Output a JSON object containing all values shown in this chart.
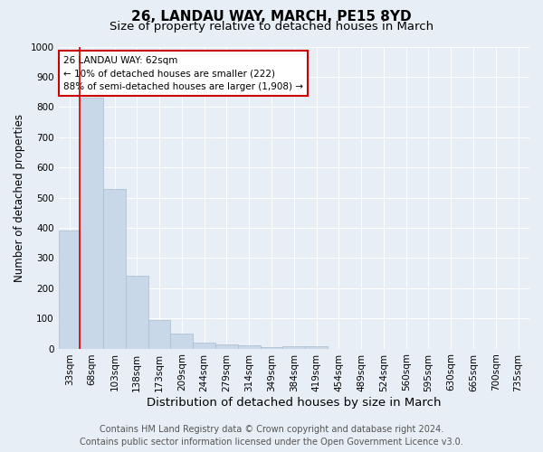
{
  "title1": "26, LANDAU WAY, MARCH, PE15 8YD",
  "title2": "Size of property relative to detached houses in March",
  "xlabel": "Distribution of detached houses by size in March",
  "ylabel": "Number of detached properties",
  "categories": [
    "33sqm",
    "68sqm",
    "103sqm",
    "138sqm",
    "173sqm",
    "209sqm",
    "244sqm",
    "279sqm",
    "314sqm",
    "349sqm",
    "384sqm",
    "419sqm",
    "454sqm",
    "489sqm",
    "524sqm",
    "560sqm",
    "595sqm",
    "630sqm",
    "665sqm",
    "700sqm",
    "735sqm"
  ],
  "values": [
    390,
    830,
    530,
    240,
    95,
    50,
    20,
    13,
    10,
    5,
    8,
    8,
    0,
    0,
    0,
    0,
    0,
    0,
    0,
    0,
    0
  ],
  "bar_color": "#c8d8e8",
  "bar_edge_color": "#a8bece",
  "ylim": [
    0,
    1000
  ],
  "yticks": [
    0,
    100,
    200,
    300,
    400,
    500,
    600,
    700,
    800,
    900,
    1000
  ],
  "annotation_title": "26 LANDAU WAY: 62sqm",
  "annotation_line1": "← 10% of detached houses are smaller (222)",
  "annotation_line2": "88% of semi-detached houses are larger (1,908) →",
  "annotation_box_color": "#ffffff",
  "annotation_border_color": "#cc0000",
  "footer_line1": "Contains HM Land Registry data © Crown copyright and database right 2024.",
  "footer_line2": "Contains public sector information licensed under the Open Government Licence v3.0.",
  "background_color": "#e8eef5",
  "plot_bg_color": "#e8eef5",
  "grid_color": "#ffffff",
  "title1_fontsize": 11,
  "title2_fontsize": 9.5,
  "xlabel_fontsize": 9.5,
  "ylabel_fontsize": 8.5,
  "tick_fontsize": 7.5,
  "annotation_fontsize": 7.5,
  "footer_fontsize": 7
}
